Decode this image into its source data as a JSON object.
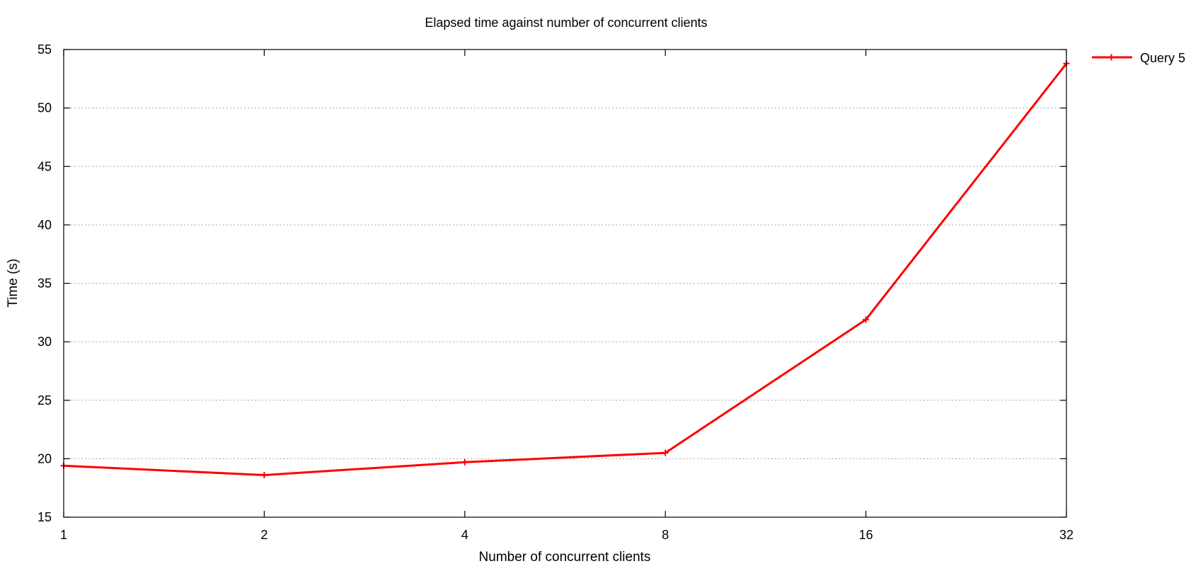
{
  "chart_data": {
    "type": "line",
    "title": "Elapsed time against number of concurrent clients",
    "xlabel": "Number of concurrent clients",
    "ylabel": "Time (s)",
    "x_scale": "log2",
    "x_ticks": [
      "1",
      "2",
      "4",
      "8",
      "16",
      "32"
    ],
    "x_tick_values": [
      1,
      2,
      4,
      8,
      16,
      32
    ],
    "xlim": [
      1,
      32
    ],
    "y_ticks": [
      "15",
      "20",
      "25",
      "30",
      "35",
      "40",
      "45",
      "50",
      "55"
    ],
    "y_tick_values": [
      15,
      20,
      25,
      30,
      35,
      40,
      45,
      50,
      55
    ],
    "ylim": [
      15,
      55
    ],
    "grid": "horizontal dotted",
    "legend_position": "outside top-right",
    "series": [
      {
        "name": "Query 5",
        "color": "#ff0000",
        "marker": "plus",
        "x": [
          1,
          2,
          4,
          8,
          16,
          32
        ],
        "y": [
          19.4,
          18.6,
          19.7,
          20.5,
          31.9,
          53.8
        ]
      }
    ]
  }
}
